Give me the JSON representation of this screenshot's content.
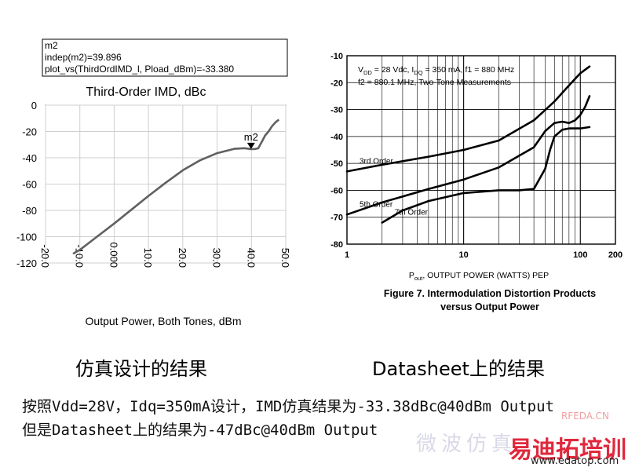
{
  "chart_data": [
    {
      "type": "line",
      "title": "Third-Order IMD, dBc",
      "xlabel": "Output Power, Both Tones, dBm",
      "ylabel": "",
      "xlim": [
        -20,
        50
      ],
      "ylim": [
        -120,
        0
      ],
      "xticks": [
        "-20.0",
        "-10.0",
        "0.000",
        "10.0",
        "20.0",
        "30.0",
        "40.0",
        "50.0"
      ],
      "yticks": [
        "0",
        "-20",
        "-40",
        "-60",
        "-80",
        "-100",
        "-120"
      ],
      "grid": true,
      "marker_box": {
        "line1": "m2",
        "line2": "indep(m2)=39.896",
        "line3": "plot_vs(ThirdOrdIMD_l, Pload_dBm)=-33.380"
      },
      "marker": {
        "label": "m2",
        "x": 39.896,
        "y": -33.38
      },
      "series": [
        {
          "x": [
            -12,
            -10,
            -5,
            0,
            5,
            10,
            15,
            20,
            25,
            30,
            35,
            38,
            39.896,
            41,
            42,
            43,
            44,
            45,
            46,
            47,
            48
          ],
          "y": [
            -113,
            -110,
            -100,
            -90,
            -79.5,
            -69,
            -59,
            -49.5,
            -42,
            -36.5,
            -33.2,
            -32.7,
            -33.38,
            -33.3,
            -32.8,
            -28,
            -23,
            -20,
            -16,
            -13,
            -11
          ]
        }
      ],
      "color": "#606060"
    },
    {
      "type": "line",
      "title": "",
      "xlabel": "P_out, OUTPUT POWER (WATTS) PEP",
      "xlabel_main": "P",
      "xlabel_sub": "out",
      "xlabel_rest": ", OUTPUT POWER (WATTS) PEP",
      "ylabel": "",
      "xscale": "log",
      "xlim": [
        1,
        200
      ],
      "ylim": [
        -80,
        -10
      ],
      "xticks": [
        "1",
        "10",
        "100",
        "200"
      ],
      "yticks": [
        "-10",
        "-20",
        "-30",
        "-40",
        "-50",
        "-60",
        "-70",
        "-80"
      ],
      "grid": true,
      "conditions_line1_a": "V",
      "conditions_line1_sub1": "DD",
      "conditions_line1_b": " = 28 Vdc, I",
      "conditions_line1_sub2": "DQ",
      "conditions_line1_c": " = 350 mA, f1 = 880 MHz",
      "conditions_line2": "f2 = 880.1 MHz, Two-Tone Measurements",
      "figure_caption_line1": "Figure 7. Intermodulation Distortion Products",
      "figure_caption_line2": "versus Output Power",
      "series": [
        {
          "name": "3rd Order",
          "x": [
            1,
            2,
            5,
            10,
            20,
            40,
            60,
            80,
            100,
            120
          ],
          "y": [
            -53,
            -50.5,
            -47.5,
            -45,
            -41.5,
            -34,
            -27,
            -21,
            -16.5,
            -14
          ]
        },
        {
          "name": "5th Order",
          "x": [
            1,
            2,
            5,
            10,
            20,
            40,
            50,
            60,
            70,
            80,
            90,
            100,
            110,
            120
          ],
          "y": [
            -69,
            -64.5,
            -59.5,
            -56,
            -51.5,
            -44,
            -38,
            -35,
            -34.5,
            -35,
            -34,
            -32,
            -29,
            -25
          ]
        },
        {
          "name": "7th Order",
          "x": [
            2,
            3,
            5,
            10,
            20,
            30,
            40,
            50,
            55,
            60,
            70,
            80,
            100,
            120
          ],
          "y": [
            -72,
            -67.5,
            -64,
            -61,
            -60,
            -60,
            -59.5,
            -52,
            -45,
            -40,
            -37.5,
            -37,
            -37,
            -36.5
          ]
        }
      ],
      "color": "#000000"
    }
  ],
  "captions": {
    "left": "仿真设计的结果",
    "right": "Datasheet上的结果"
  },
  "notes": {
    "line1": "按照Vdd=28V，Idq=350mA设计，IMD仿真结果为-33.38dBc@40dBm Output",
    "line2": "但是Datasheet上的结果为-47dBc@40dBm Output"
  },
  "watermark": {
    "site": "RFEDA.CN",
    "cn_text": "微波仿真",
    "brand": "易迪拓培训",
    "url": "www.edatop.com"
  }
}
